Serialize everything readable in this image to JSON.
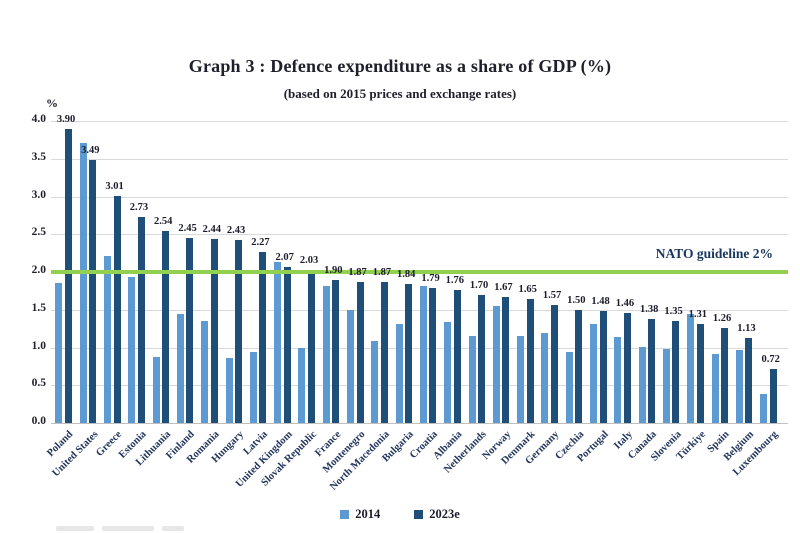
{
  "chart_data": {
    "type": "bar",
    "title": "Graph 3 : Defence expenditure as a share of GDP (%)",
    "subtitle": "(based on 2015 prices and exchange rates)",
    "y_axis_unit": "%",
    "ylim": [
      0,
      4.0
    ],
    "ytick_step": 0.5,
    "grid": true,
    "legend_position": "bottom-center",
    "data_labels_on": "2023e",
    "categories": [
      "Poland",
      "United States",
      "Greece",
      "Estonia",
      "Lithuania",
      "Finland",
      "Romania",
      "Hungary",
      "Latvia",
      "United Kingdom",
      "Slovak Republic",
      "France",
      "Montenegro",
      "North Macedonia",
      "Bulgaria",
      "Croatia",
      "Albania",
      "Netherlands",
      "Norway",
      "Denmark",
      "Germany",
      "Czechia",
      "Portugal",
      "Italy",
      "Canada",
      "Slovenia",
      "Türkiye",
      "Spain",
      "Belgium",
      "Luxembourg"
    ],
    "series": [
      {
        "name": "2014",
        "color": "#5e9ad2",
        "values": [
          1.85,
          3.71,
          2.22,
          1.93,
          0.88,
          1.45,
          1.35,
          0.86,
          0.94,
          2.14,
          0.99,
          1.82,
          1.5,
          1.09,
          1.31,
          1.82,
          1.34,
          1.15,
          1.55,
          1.15,
          1.19,
          0.94,
          1.31,
          1.14,
          1.01,
          0.98,
          1.45,
          0.92,
          0.97,
          0.38
        ]
      },
      {
        "name": "2023e",
        "color": "#1f4e79",
        "values": [
          3.9,
          3.49,
          3.01,
          2.73,
          2.54,
          2.45,
          2.44,
          2.43,
          2.27,
          2.07,
          2.03,
          1.9,
          1.87,
          1.87,
          1.84,
          1.79,
          1.76,
          1.7,
          1.67,
          1.65,
          1.57,
          1.5,
          1.48,
          1.46,
          1.38,
          1.35,
          1.31,
          1.26,
          1.13,
          0.72
        ]
      }
    ],
    "reference_line": {
      "value": 2.0,
      "color": "#92d050",
      "label": "NATO guideline 2%"
    }
  },
  "colors": {
    "gridline": "#d9d9d9",
    "axis_text": "#20202c",
    "category_text": "#21345c",
    "reference_label_text": "#17365d"
  }
}
